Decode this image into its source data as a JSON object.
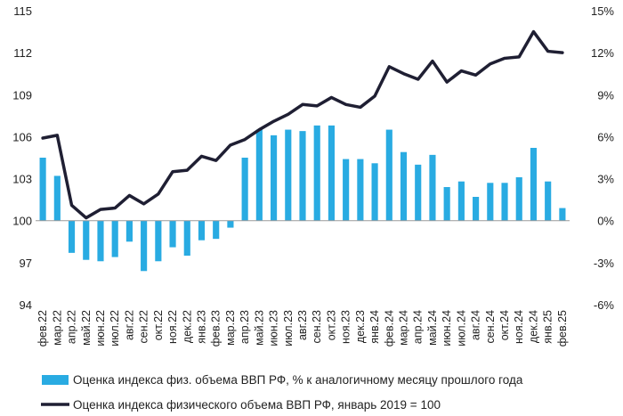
{
  "chart_data": {
    "type": "bar+line",
    "categories": [
      "фев.22",
      "мар.22",
      "апр.22",
      "май.22",
      "июн.22",
      "июл.22",
      "авг.22",
      "сен.22",
      "окт.22",
      "ноя.22",
      "дек.22",
      "янв.23",
      "фев.23",
      "мар.23",
      "апр.23",
      "май.23",
      "июн.23",
      "июл.23",
      "авг.23",
      "сен.23",
      "окт.23",
      "ноя.23",
      "дек.23",
      "янв.24",
      "фев.24",
      "мар.24",
      "апр.24",
      "май.24",
      "июн.24",
      "июл.24",
      "авг.24",
      "сен.24",
      "окт.24",
      "ноя.24",
      "дек.24",
      "янв.25",
      "фев.25"
    ],
    "series": [
      {
        "name": "Оценка индекса физ. объема ВВП РФ, % к аналогичному месяцу прошлого года",
        "type": "bar",
        "axis": "right",
        "color": "#29ABE2",
        "values": [
          4.5,
          3.2,
          -2.3,
          -2.8,
          -2.9,
          -2.6,
          -1.5,
          -3.6,
          -2.9,
          -1.9,
          -2.5,
          -1.4,
          -1.3,
          -0.5,
          4.5,
          6.5,
          6.1,
          6.5,
          6.4,
          6.8,
          6.8,
          4.4,
          4.4,
          4.1,
          6.5,
          4.9,
          4.0,
          4.7,
          2.4,
          2.8,
          1.7,
          2.7,
          2.7,
          3.1,
          5.2,
          2.8,
          0.9
        ]
      },
      {
        "name": "Оценка индекса физического объема ВВП РФ, январь 2019 = 100",
        "type": "line",
        "axis": "left",
        "color": "#1F1F33",
        "values": [
          105.9,
          106.1,
          101.1,
          100.2,
          100.8,
          100.9,
          101.8,
          101.2,
          101.9,
          103.5,
          103.6,
          104.6,
          104.3,
          105.4,
          105.8,
          106.5,
          107.1,
          107.6,
          108.3,
          108.2,
          108.8,
          108.3,
          108.1,
          108.9,
          111.0,
          110.5,
          110.1,
          111.4,
          109.9,
          110.7,
          110.4,
          111.2,
          111.6,
          111.7,
          113.5,
          112.1,
          112.0
        ]
      }
    ],
    "y_left": {
      "min": 94,
      "max": 115,
      "ticks": [
        94,
        97,
        100,
        103,
        106,
        109,
        112,
        115
      ],
      "tick_labels": [
        "94",
        "97",
        "100",
        "103",
        "106",
        "109",
        "112",
        "115"
      ]
    },
    "y_right": {
      "min": -6,
      "max": 15,
      "ticks": [
        -6,
        -3,
        0,
        3,
        6,
        9,
        12,
        15
      ],
      "tick_labels": [
        "-6%",
        "-3%",
        "0%",
        "3%",
        "6%",
        "9%",
        "12%",
        "15%"
      ]
    },
    "grid": false,
    "legend_position": "bottom"
  }
}
